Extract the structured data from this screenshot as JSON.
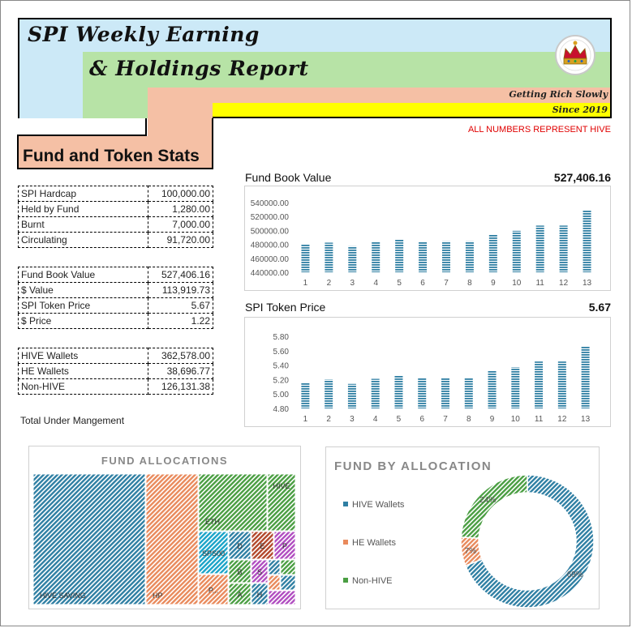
{
  "header": {
    "title_line1": "SPI Weekly Earning",
    "title_line2": "& Holdings Report",
    "tagline1": "Getting Rich Slowly",
    "tagline2": "Since 2019",
    "note": "ALL NUMBERS REPRESENT HIVE",
    "logo_icon": "crown-seal-icon"
  },
  "stats": {
    "title": "Fund and Token Stats",
    "group1": [
      {
        "label": "SPI Hardcap",
        "value": "100,000.00"
      },
      {
        "label": "Held by Fund",
        "value": "1,280.00"
      },
      {
        "label": "Burnt",
        "value": "7,000.00"
      },
      {
        "label": "Circulating",
        "value": "91,720.00"
      }
    ],
    "group2": [
      {
        "label": "Fund Book Value",
        "value": "527,406.16"
      },
      {
        "label": "$ Value",
        "value": "113,919.73"
      },
      {
        "label": "SPI Token Price",
        "value": "5.67"
      },
      {
        "label": "$ Price",
        "value": "1.22"
      }
    ],
    "group3": [
      {
        "label": "HIVE Wallets",
        "value": "362,578.00"
      },
      {
        "label": "HE Wallets",
        "value": "38,696.77"
      },
      {
        "label": "Non-HIVE",
        "value": "126,131.38"
      }
    ],
    "total_label": "Total Under Mangement"
  },
  "colors": {
    "bar": "#2f7fa3",
    "hive": "#2f7fa3",
    "he": "#e98a5c",
    "nonhive": "#4a9e42"
  },
  "chart_data": [
    {
      "type": "bar",
      "title": "Fund Book Value",
      "headline_value": "527,406.16",
      "categories": [
        "1",
        "2",
        "3",
        "4",
        "5",
        "6",
        "7",
        "8",
        "9",
        "10",
        "11",
        "12",
        "13"
      ],
      "values": [
        480000,
        482500,
        477500,
        483500,
        487500,
        483500,
        484500,
        484500,
        494500,
        499500,
        507000,
        507000,
        528500
      ],
      "yticks": [
        "440000.00",
        "460000.00",
        "480000.00",
        "500000.00",
        "520000.00",
        "540000.00"
      ],
      "ylim": [
        440000,
        540000
      ]
    },
    {
      "type": "bar",
      "title": "SPI Token Price",
      "headline_value": "5.67",
      "categories": [
        "1",
        "2",
        "3",
        "4",
        "5",
        "6",
        "7",
        "8",
        "9",
        "10",
        "11",
        "12",
        "13"
      ],
      "values": [
        5.16,
        5.2,
        5.14,
        5.21,
        5.25,
        5.22,
        5.22,
        5.22,
        5.32,
        5.37,
        5.45,
        5.45,
        5.66
      ],
      "yticks": [
        "4.80",
        "5.00",
        "5.20",
        "5.40",
        "5.60",
        "5.80"
      ],
      "ylim": [
        4.8,
        5.8
      ]
    },
    {
      "type": "treemap",
      "title": "FUND ALLOCATIONS",
      "items": [
        {
          "label": "HIVE SAVING",
          "color": "#2f7fa3"
        },
        {
          "label": "HP",
          "color": "#e98a5c"
        },
        {
          "label": "ETH",
          "color": "#4a9e42"
        },
        {
          "label": "HIVE",
          "color": "#4a9e42"
        },
        {
          "label": "SPS00",
          "color": "#1aa3c8"
        },
        {
          "label": "D",
          "color": "#2f7fa3"
        },
        {
          "label": "E",
          "color": "#b2472a"
        },
        {
          "label": "P",
          "color": "#b04cc0"
        },
        {
          "label": "P...",
          "color": "#e98a5c"
        },
        {
          "label": "B",
          "color": "#4a9e42"
        },
        {
          "label": "S",
          "color": "#b04cc0"
        },
        {
          "label": "A",
          "color": "#4a9e42"
        },
        {
          "label": "H",
          "color": "#2f7fa3"
        },
        {
          "label": "",
          "color": "#2f7fa3"
        },
        {
          "label": "",
          "color": "#4a9e42"
        },
        {
          "label": "",
          "color": "#e98a5c"
        },
        {
          "label": "",
          "color": "#2f7fa3"
        },
        {
          "label": "",
          "color": "#b04cc0"
        }
      ]
    },
    {
      "type": "pie",
      "title": "FUND BY ALLOCATION",
      "legend_position": "left",
      "slices": [
        {
          "name": "HIVE Wallets",
          "value": 69,
          "label": "69%",
          "color": "#2f7fa3"
        },
        {
          "name": "HE Wallets",
          "value": 7,
          "label": "7%",
          "color": "#e98a5c"
        },
        {
          "name": "Non-HIVE",
          "value": 24,
          "label": "24%",
          "color": "#4a9e42"
        }
      ]
    }
  ]
}
